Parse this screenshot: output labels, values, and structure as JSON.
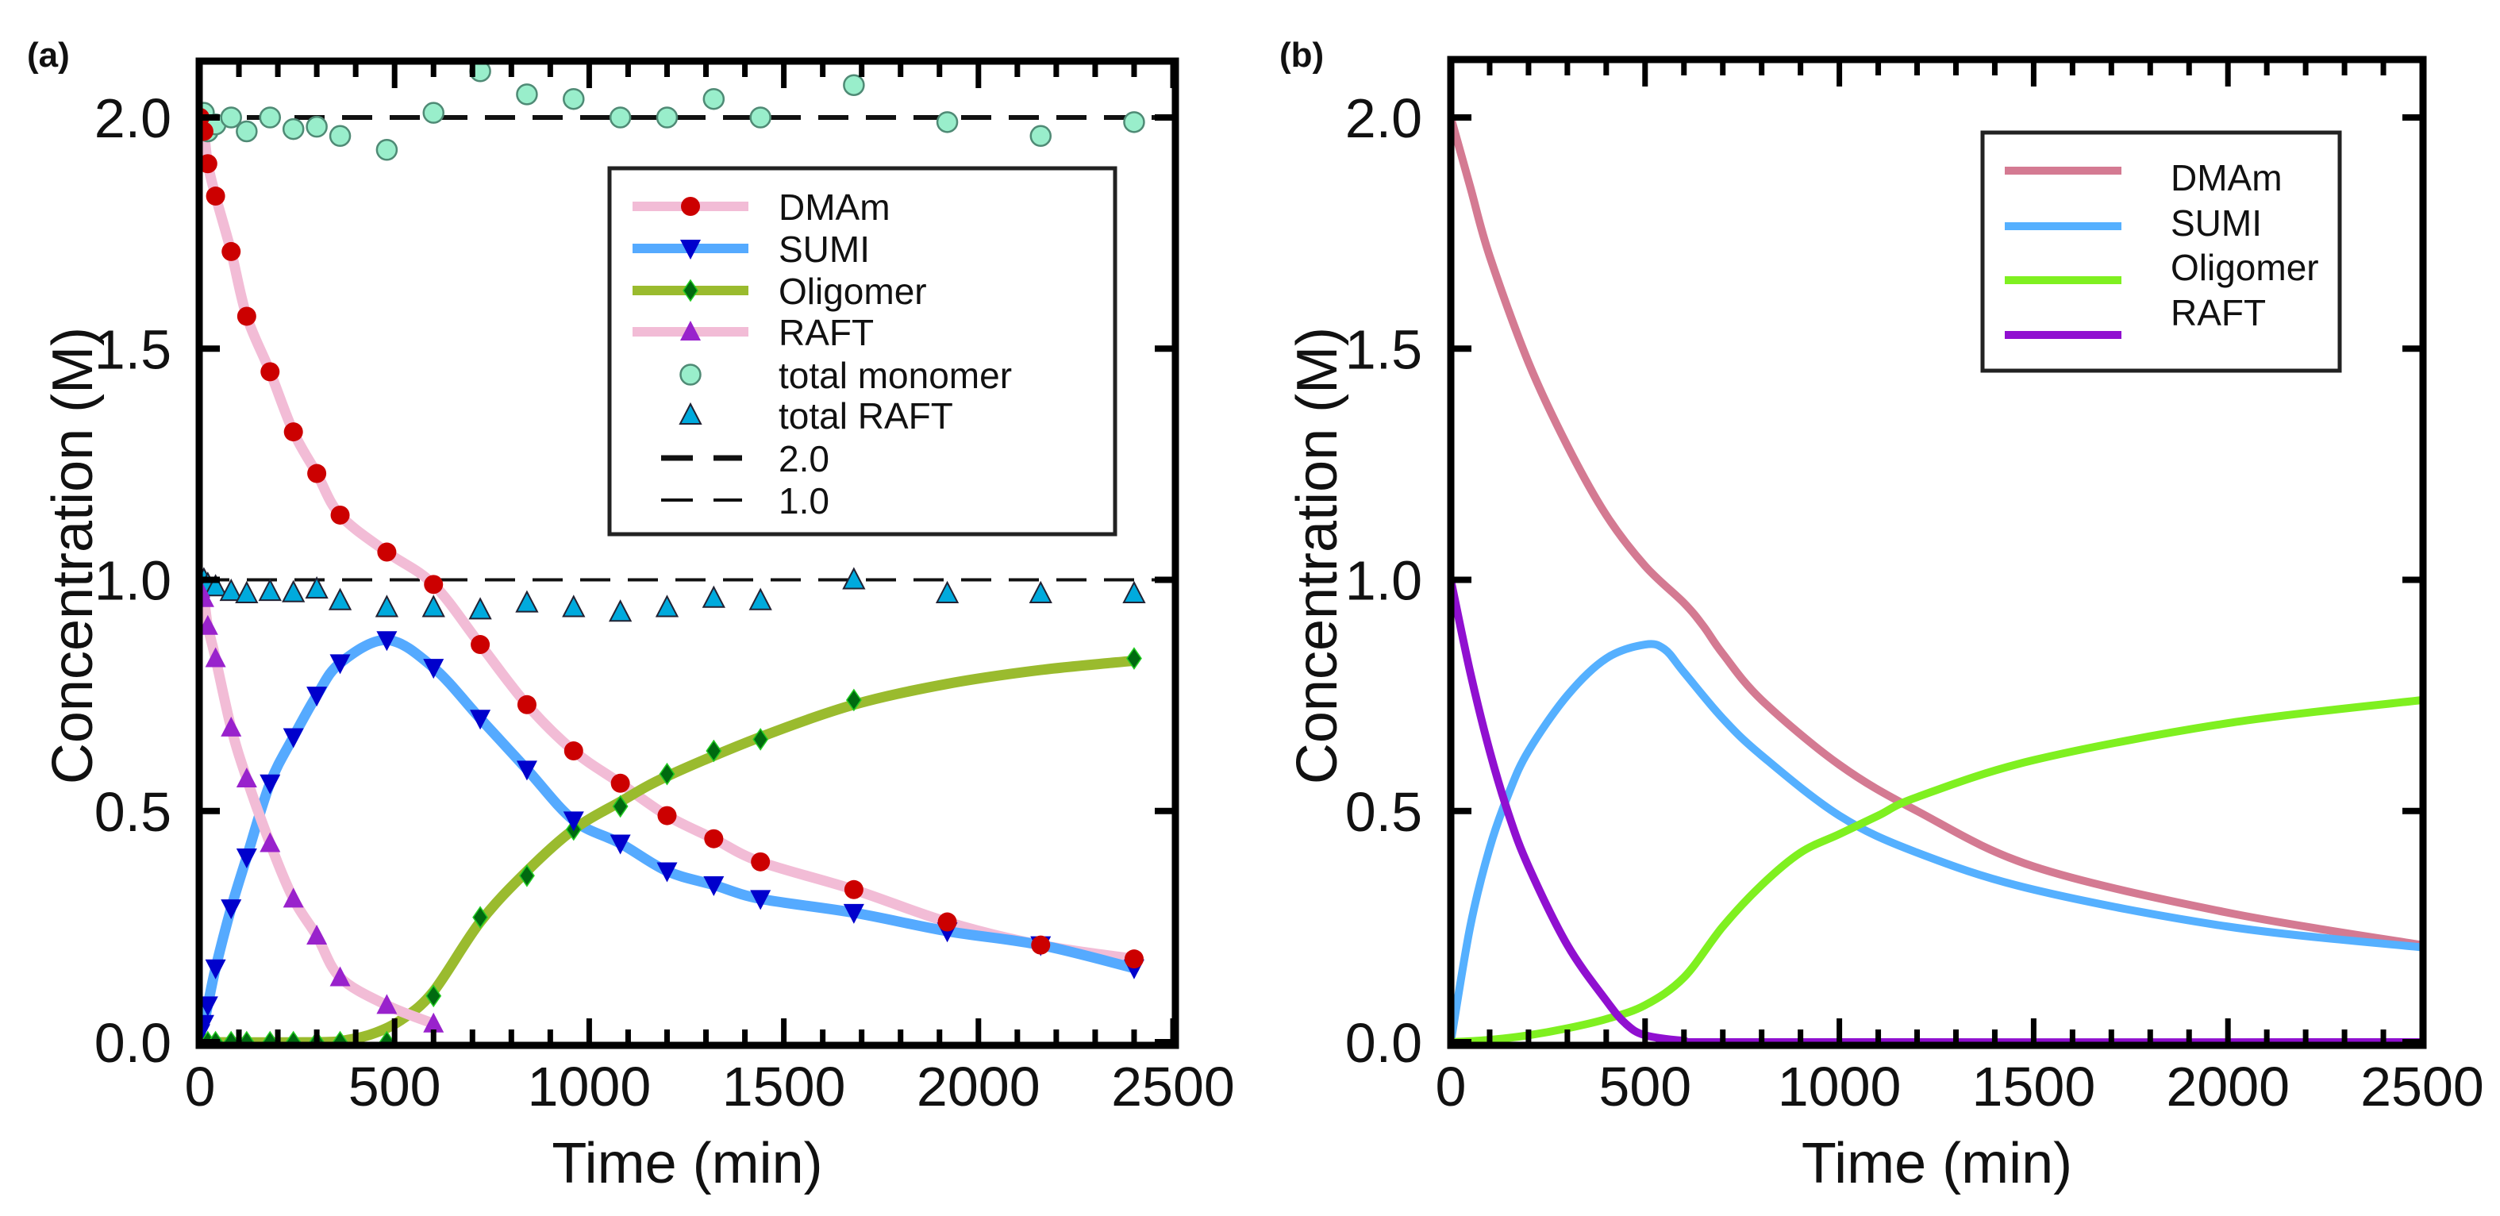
{
  "chart_data": [
    {
      "panel_label": "(a)",
      "type": "scatter",
      "xlabel": "Time (min)",
      "ylabel": "Concentration (M)",
      "xlim": [
        0,
        2500
      ],
      "ylim": [
        0,
        2.12
      ],
      "xticks": [
        "0",
        "500",
        "1000",
        "1500",
        "2000",
        "2500"
      ],
      "yticks": [
        "0.0",
        "0.5",
        "1.0",
        "1.5",
        "2.0"
      ],
      "legend_position": "top-right",
      "x": [
        0,
        10,
        20,
        40,
        80,
        120,
        180,
        240,
        300,
        360,
        480,
        600,
        720,
        840,
        960,
        1080,
        1200,
        1320,
        1440,
        1680,
        1920,
        2160,
        2400
      ],
      "series": [
        {
          "name": "DMAm",
          "marker": "circle",
          "marker_color": "#cc0000",
          "line_color": "#f2bcd6",
          "values": [
            2.0,
            1.97,
            1.9,
            1.83,
            1.71,
            1.57,
            1.45,
            1.32,
            1.23,
            1.14,
            1.06,
            0.99,
            0.86,
            0.73,
            0.63,
            0.56,
            0.49,
            0.44,
            0.39,
            0.33,
            0.26,
            0.21,
            0.18
          ]
        },
        {
          "name": "SUMI",
          "marker": "triangle-down",
          "marker_color": "#0000cc",
          "line_color": "#55aaff",
          "values": [
            0.02,
            0.04,
            0.08,
            0.16,
            0.29,
            0.4,
            0.56,
            0.66,
            0.75,
            0.82,
            0.87,
            0.81,
            0.7,
            0.59,
            0.48,
            0.43,
            0.37,
            0.34,
            0.31,
            0.28,
            0.24,
            0.21,
            0.16
          ]
        },
        {
          "name": "Oligomer",
          "marker": "diamond",
          "marker_color": "#006a10",
          "line_color": "#9abb2e",
          "values": [
            0,
            0,
            0,
            0,
            0,
            0,
            0,
            0,
            0,
            0,
            0.0,
            0.1,
            0.27,
            0.36,
            0.46,
            0.51,
            0.58,
            0.63,
            0.655,
            0.74,
            null,
            null,
            0.83
          ],
          "fit": [
            [
              0,
              0
            ],
            [
              300,
              0
            ],
            [
              380,
              0.005
            ],
            [
              450,
              0.02
            ],
            [
              520,
              0.05
            ],
            [
              600,
              0.11
            ],
            [
              720,
              0.26
            ],
            [
              840,
              0.37
            ],
            [
              960,
              0.46
            ],
            [
              1080,
              0.52
            ],
            [
              1200,
              0.575
            ],
            [
              1440,
              0.66
            ],
            [
              1680,
              0.73
            ],
            [
              1920,
              0.775
            ],
            [
              2160,
              0.805
            ],
            [
              2400,
              0.825
            ]
          ]
        },
        {
          "name": "RAFT",
          "marker": "triangle-up",
          "marker_color": "#9922cc",
          "line_color": "#f2bcd6",
          "values": [
            0.98,
            0.96,
            0.9,
            0.83,
            0.68,
            0.57,
            0.43,
            0.31,
            0.23,
            0.14,
            0.08,
            0.04,
            null,
            null,
            null,
            null,
            null,
            null,
            null,
            null,
            null,
            null,
            null
          ]
        },
        {
          "name": "total monomer",
          "marker": "circle-open",
          "marker_color": "#99eecb",
          "line_color": null,
          "values": [
            1.99,
            2.01,
            1.97,
            1.985,
            2.0,
            1.97,
            2.0,
            1.975,
            1.98,
            1.96,
            1.93,
            2.01,
            2.1,
            2.05,
            2.04,
            2.0,
            2.0,
            2.04,
            2.0,
            2.07,
            1.99,
            1.96,
            1.99
          ]
        },
        {
          "name": "total RAFT",
          "marker": "triangle-up-open",
          "marker_color": "#00aadd",
          "line_color": null,
          "values": [
            1.0,
            1.0,
            0.99,
            0.985,
            0.975,
            0.97,
            0.975,
            0.972,
            0.98,
            0.955,
            0.94,
            0.94,
            0.935,
            0.95,
            0.94,
            0.93,
            0.94,
            0.96,
            0.955,
            1.0,
            0.97,
            0.97,
            0.97
          ]
        }
      ],
      "reference_lines": [
        {
          "name": "2.0",
          "y": 2.0,
          "style": "thick-dashed"
        },
        {
          "name": "1.0",
          "y": 1.0,
          "style": "thin-dashed"
        }
      ]
    },
    {
      "panel_label": "(b)",
      "type": "line",
      "xlabel": "Time (min)",
      "ylabel": "Concentration (M)",
      "xlim": [
        0,
        2500
      ],
      "ylim": [
        0,
        2.12
      ],
      "xticks": [
        "0",
        "500",
        "1000",
        "1500",
        "2000",
        "2500"
      ],
      "yticks": [
        "0.0",
        "0.5",
        "1.0",
        "1.5",
        "2.0"
      ],
      "legend_position": "top-right",
      "series": [
        {
          "name": "DMAm",
          "color": "#d47a92",
          "points": [
            [
              0,
              2.0
            ],
            [
              50,
              1.85
            ],
            [
              100,
              1.7
            ],
            [
              200,
              1.47
            ],
            [
              300,
              1.29
            ],
            [
              400,
              1.14
            ],
            [
              500,
              1.03
            ],
            [
              600,
              0.95
            ],
            [
              650,
              0.9
            ],
            [
              700,
              0.84
            ],
            [
              800,
              0.74
            ],
            [
              1000,
              0.6
            ],
            [
              1200,
              0.5
            ],
            [
              1500,
              0.38
            ],
            [
              2000,
              0.28
            ],
            [
              2500,
              0.21
            ]
          ]
        },
        {
          "name": "SUMI",
          "color": "#55b0ff",
          "points": [
            [
              0,
              0
            ],
            [
              50,
              0.25
            ],
            [
              100,
              0.42
            ],
            [
              150,
              0.54
            ],
            [
              200,
              0.63
            ],
            [
              300,
              0.75
            ],
            [
              400,
              0.83
            ],
            [
              500,
              0.86
            ],
            [
              550,
              0.85
            ],
            [
              600,
              0.8
            ],
            [
              700,
              0.7
            ],
            [
              800,
              0.62
            ],
            [
              1000,
              0.49
            ],
            [
              1200,
              0.41
            ],
            [
              1500,
              0.33
            ],
            [
              2000,
              0.25
            ],
            [
              2500,
              0.205
            ]
          ]
        },
        {
          "name": "Oligomer",
          "color": "#7ff020",
          "points": [
            [
              0,
              0
            ],
            [
              100,
              0.005
            ],
            [
              200,
              0.015
            ],
            [
              300,
              0.03
            ],
            [
              400,
              0.05
            ],
            [
              500,
              0.08
            ],
            [
              600,
              0.14
            ],
            [
              700,
              0.25
            ],
            [
              800,
              0.34
            ],
            [
              900,
              0.41
            ],
            [
              1000,
              0.45
            ],
            [
              1100,
              0.49
            ],
            [
              1200,
              0.53
            ],
            [
              1500,
              0.61
            ],
            [
              2000,
              0.69
            ],
            [
              2500,
              0.74
            ]
          ]
        },
        {
          "name": "RAFT",
          "color": "#9010d0",
          "points": [
            [
              0,
              1.0
            ],
            [
              50,
              0.8
            ],
            [
              100,
              0.63
            ],
            [
              150,
              0.49
            ],
            [
              200,
              0.38
            ],
            [
              300,
              0.21
            ],
            [
              400,
              0.09
            ],
            [
              450,
              0.04
            ],
            [
              500,
              0.015
            ],
            [
              600,
              0.003
            ],
            [
              700,
              0
            ],
            [
              2500,
              0
            ]
          ]
        }
      ]
    }
  ]
}
